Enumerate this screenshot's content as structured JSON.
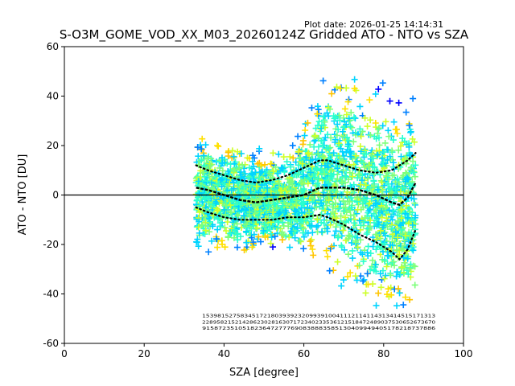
{
  "plot_date": "Plot date: 2026-01-25 14:14:31",
  "chart_data": {
    "type": "scatter",
    "title": "S-O3M_GOME_VOD_XX_M03_20260124Z Gridded ATO - NTO vs SZA",
    "xlabel": "SZA [degree]",
    "ylabel": "ATO - NTO [DU]",
    "xlim": [
      0,
      100
    ],
    "ylim": [
      -60,
      60
    ],
    "x_ticks": [
      0,
      20,
      40,
      60,
      80,
      100
    ],
    "y_ticks": [
      -60,
      -40,
      -20,
      0,
      20,
      40,
      60
    ],
    "marker": "+",
    "reference_line_y": 0,
    "point_colors": [
      "#0000ff",
      "#0080ff",
      "#00d4ff",
      "#29ffce",
      "#7dff7a",
      "#ceff29",
      "#ffc400",
      "#ffe000"
    ],
    "scatter_extent": {
      "sza": [
        33,
        88
      ],
      "lower": [
        -28,
        -28,
        -30,
        -27,
        -25,
        -25,
        -30,
        -32,
        -35,
        -45,
        -50,
        -55,
        -58,
        -58
      ],
      "upper": [
        28,
        28,
        25,
        22,
        20,
        22,
        26,
        40,
        55,
        55,
        52,
        48,
        45,
        50
      ],
      "sza_points": [
        33,
        38,
        42,
        46,
        50,
        54,
        58,
        62,
        65,
        70,
        75,
        80,
        84,
        88
      ]
    },
    "series": [
      {
        "name": "mean",
        "style": "solid",
        "x": [
          33,
          36,
          40,
          44,
          48,
          52,
          56,
          60,
          64,
          66,
          70,
          74,
          78,
          82,
          84,
          86,
          88
        ],
        "y": [
          3,
          2,
          0,
          -2,
          -3,
          -2,
          -1,
          0,
          3,
          3,
          3,
          2,
          0,
          -3,
          -4,
          -1,
          5
        ]
      },
      {
        "name": "mean + std",
        "style": "dotted",
        "x": [
          33,
          36,
          40,
          44,
          48,
          52,
          56,
          60,
          64,
          66,
          70,
          74,
          78,
          82,
          84,
          86,
          88
        ],
        "y": [
          12,
          10,
          8,
          6,
          5,
          6,
          8,
          11,
          14,
          14,
          12,
          10,
          9,
          10,
          12,
          14,
          17
        ]
      },
      {
        "name": "mean - std",
        "style": "dotted",
        "x": [
          33,
          36,
          40,
          44,
          48,
          52,
          56,
          60,
          64,
          66,
          70,
          74,
          78,
          82,
          84,
          86,
          88
        ],
        "y": [
          -5,
          -7,
          -9,
          -10,
          -10,
          -10,
          -9,
          -9,
          -8,
          -9,
          -12,
          -16,
          -19,
          -23,
          -26,
          -22,
          -14
        ]
      }
    ],
    "count_label_rows": [
      "1 5 3 9 8 1 5 2 7 5 8 3 4 5 1 7 2 1 8 0 3 9 3 9 2 3 2 0 9 9 3 9 1 0 0 4 1 1 1 2 1 1 4 1 1 4 3 1 3 4 1 4 5 1 5 1 7 1 3 1 3",
      "2 2 8 9 5 8 2 1 5 2 1 4 2 8 6 2 3 0 2 8 1 6 3 0 7 1 7 2 3 4 0 2 3 3 5 3 6 1 2 1 5 1 8 4 7 2 4 8 9 0 3 7 5 3 0 6 5 2 6 7 3 6 7 0",
      "9 1 5 8 7 2 3 5 1 0 5 1 8 2 3 6 4 7 2 7 7 7 6 9 0 8 3 8 8 8 3 5 8 5 1 3 0 4 0 9 9 4 9 4 0 5 1 7 8 2 1 8 7 3 7 8 8 6"
    ]
  }
}
